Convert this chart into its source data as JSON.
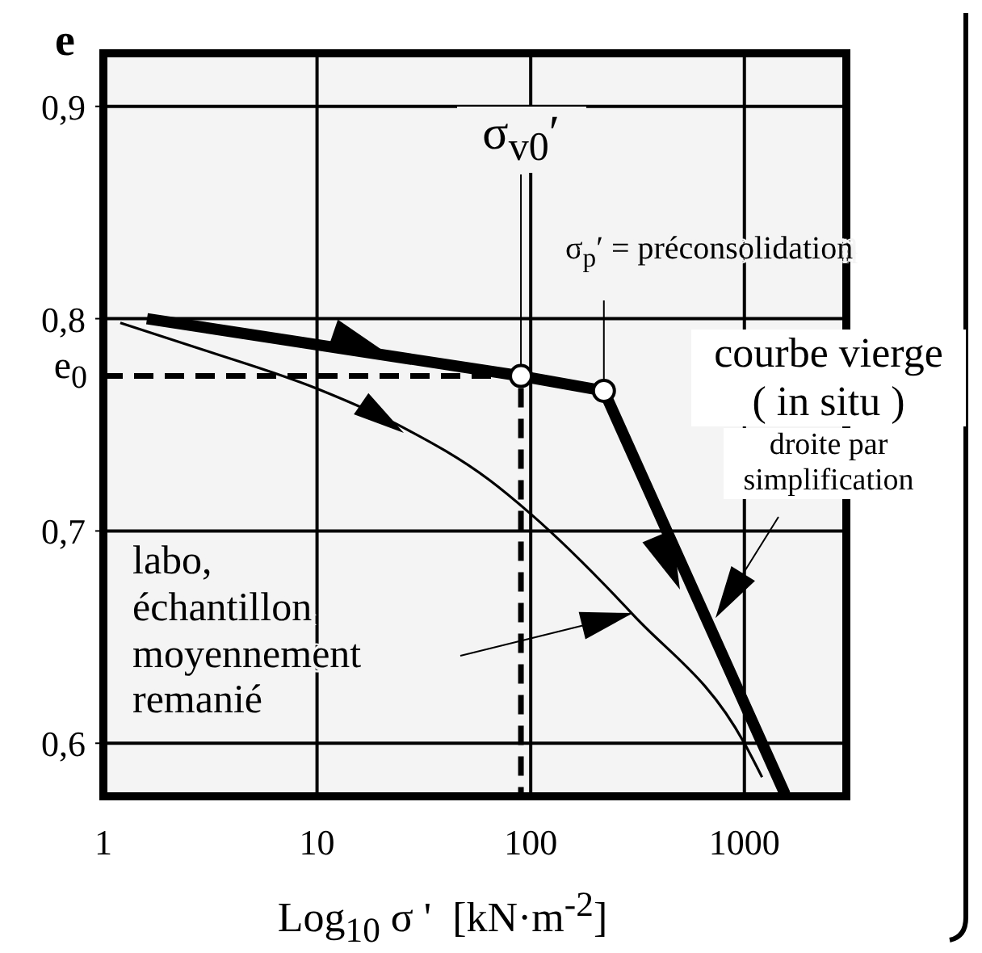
{
  "chart_data": {
    "type": "line",
    "ylabel": "e",
    "xlabel": "Log$_{10}$ σ '  [kN·m$^{-2}$]",
    "log": "x",
    "grid": true,
    "xlim": [
      1,
      3000
    ],
    "xticks": [
      1,
      10,
      100,
      1000
    ],
    "ylim": [
      0.575,
      0.925
    ],
    "yticks": [
      {
        "value": 0.6,
        "label": "0,6"
      },
      {
        "value": 0.7,
        "label": "0,7"
      },
      {
        "value": 0.8,
        "label": "0,8"
      },
      {
        "value": 0.9,
        "label": "0,9"
      }
    ],
    "series": [
      {
        "color": "#000000",
        "x": [
          1.6,
          90,
          220,
          1550
        ],
        "values": [
          0.8,
          0.773,
          0.766,
          0.576
        ]
      },
      {
        "color": "#000000",
        "x": [
          1.2,
          3,
          10,
          25,
          64,
          100,
          305,
          1000,
          1210
        ],
        "values": [
          0.798,
          0.785,
          0.767,
          0.749,
          0.724,
          0.708,
          0.66,
          0.6,
          0.584
        ]
      },
      {
        "color": "#000000",
        "line_style": "dashed",
        "x": [
          1,
          90,
          90
        ],
        "values": [
          0.773,
          0.773,
          0.575
        ]
      },
      {
        "type": "scatter",
        "marker": "circle",
        "color": "#ffffff",
        "x": [
          90,
          220
        ],
        "values": [
          0.773,
          0.766
        ]
      }
    ],
    "annotations": [
      {
        "text": "σ$_{v0}$′",
        "x": 90,
        "y": 0.773
      },
      {
        "text": "σ$_{p}$′ = préconsolidation",
        "x": 220,
        "y": 0.766
      },
      "courbe vierge",
      "( in situ )",
      "droite par simplification",
      "labo, échantillon moyennement remanié",
      {
        "text": "e$_{0}$",
        "x": 1,
        "y": 0.773
      }
    ]
  }
}
